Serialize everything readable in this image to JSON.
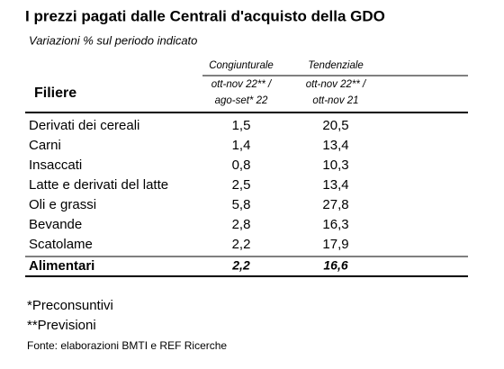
{
  "header": {
    "title": "I prezzi pagati dalle Centrali d'acquisto della GDO",
    "subtitle": "Variazioni % sul periodo indicato"
  },
  "table": {
    "row_header": "Filiere",
    "columns": [
      {
        "name": "Congiunturale",
        "period": [
          "ott-nov 22** /",
          "ago-set* 22"
        ]
      },
      {
        "name": "Tendenziale",
        "period": [
          "ott-nov 22** /",
          "ott-nov 21"
        ]
      }
    ],
    "rows": [
      [
        "Derivati dei cereali",
        "1,5",
        "20,5"
      ],
      [
        "Carni",
        "1,4",
        "13,4"
      ],
      [
        "Insaccati",
        "0,8",
        "10,3"
      ],
      [
        "Latte e derivati del latte",
        "2,5",
        "13,4"
      ],
      [
        "Oli e grassi",
        "5,8",
        "27,8"
      ],
      [
        "Bevande",
        "2,8",
        "16,3"
      ],
      [
        "Scatolame",
        "2,2",
        "17,9"
      ]
    ],
    "total": [
      "Alimentari",
      "2,2",
      "16,6"
    ]
  },
  "notes": [
    "*Preconsuntivi",
    "**Previsioni"
  ],
  "source": "Fonte: elaborazioni BMTI e REF Ricerche"
}
